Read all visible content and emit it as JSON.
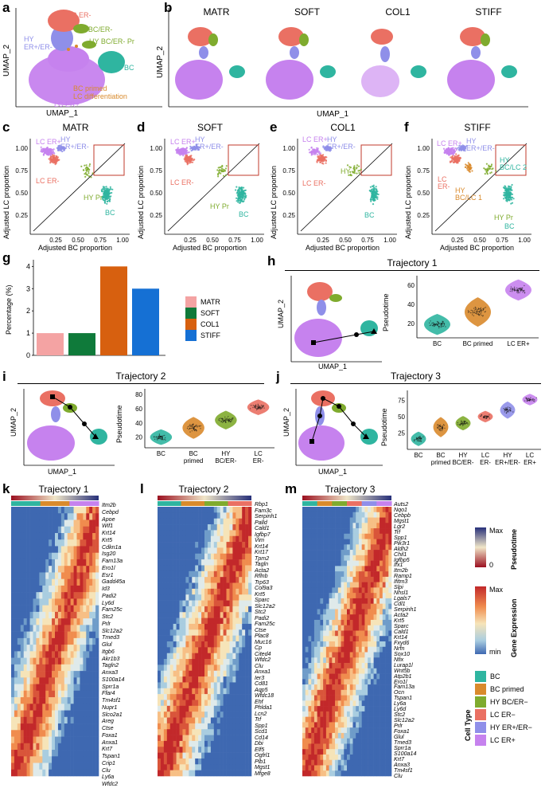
{
  "colors": {
    "bc": "#2fb5a0",
    "bc_primed": "#d98a2c",
    "hy_bcer": "#7fab2e",
    "lc_erneg": "#ea7063",
    "hy_erer": "#8f8fe9",
    "lc_erpos": "#c682ee",
    "matr": "#f4a3a3",
    "soft": "#0f7a3a",
    "col1": "#d7600f",
    "stiff": "#1570d4"
  },
  "panels": {
    "a": "a",
    "b": "b",
    "c": "c",
    "d": "d",
    "e": "e",
    "f": "f",
    "g": "g",
    "h": "h",
    "i": "i",
    "j": "j",
    "k": "k",
    "l": "l",
    "m": "m"
  },
  "panel_a": {
    "labels": [
      "LC ER-",
      "HY BC/ER-",
      "HY ER+/ER-",
      "HY BC/ER- Pr",
      "BC",
      "BC primed LC differentiation",
      "LC ER+"
    ],
    "xlabel": "UMAP_1",
    "ylabel": "UMAP_2"
  },
  "panel_b": {
    "conditions": [
      "MATR",
      "SOFT",
      "COL1",
      "STIFF"
    ],
    "xlabel": "UMAP_1",
    "ylabel": "UMAP_2"
  },
  "scatter_panels": {
    "titles": [
      "MATR",
      "SOFT",
      "COL1",
      "STIFF"
    ],
    "xlabel": "Adjusted BC proportion",
    "ylabel": "Adjusted LC proportion",
    "xticks": [
      "0.25",
      "0.50",
      "0.75",
      "1.00"
    ],
    "yticks": [
      "1.00",
      "0.75",
      "0.50",
      "0.25"
    ],
    "labels_c": [
      "LC ER+",
      "HY ER+/ER-",
      "LC ER-",
      "HY Pr",
      "BC"
    ],
    "labels_d": [
      "LC ER+",
      "HY ER+/ER-",
      "LC ER-",
      "HY Pr",
      "BC"
    ],
    "labels_e": [
      "LC ER+",
      "HY ER+/ER-",
      "LC ER-",
      "HY",
      "BC"
    ],
    "labels_f": [
      "LC ER+",
      "HY ER+/ER-",
      "HY BC/LC 2",
      "LC ER-",
      "HY BC/LC 1",
      "HY Pr",
      "BC"
    ]
  },
  "chart_data": [
    {
      "type": "bar",
      "title": "",
      "categories": [
        "MATR",
        "SOFT",
        "COL1",
        "STIFF"
      ],
      "values": [
        1,
        1,
        4,
        3
      ],
      "ylabel": "Percentage (%)",
      "xlabel": "",
      "ylim": [
        0,
        4.3
      ],
      "yticks": [
        "0",
        "1",
        "2",
        "3",
        "4"
      ],
      "legend": [
        "MATR",
        "SOFT",
        "COL1",
        "STIFF"
      ],
      "legend_position": "right"
    }
  ],
  "trajectories": {
    "t1": {
      "title": "Trajectory 1",
      "ylabel": "Pseudotime",
      "yticks": [
        "20",
        "40",
        "60"
      ],
      "groups": [
        "BC",
        "BC primed",
        "LC ER+"
      ],
      "umap_x": "UMAP_1",
      "umap_y": "UMAP_2"
    },
    "t2": {
      "title": "Trajectory 2",
      "ylabel": "Pseudotime",
      "yticks": [
        "20",
        "40",
        "60",
        "80"
      ],
      "groups": [
        "BC",
        "BC primed",
        "HY BC/ER-",
        "LC ER-"
      ],
      "umap_x": "UMAP_1",
      "umap_y": "UMAP_2"
    },
    "t3": {
      "title": "Trajectory 3",
      "ylabel": "Pseudotime",
      "yticks": [
        "25",
        "50",
        "75"
      ],
      "groups": [
        "BC",
        "BC primed",
        "HY BC/ER-",
        "LC ER-",
        "HY ER+/ER-",
        "LC ER+"
      ],
      "umap_x": "UMAP_1",
      "umap_y": "UMAP_2"
    }
  },
  "heatmaps": {
    "k": {
      "title": "Trajectory 1",
      "genes": [
        "Itm2b",
        "Cebpd",
        "Apoe",
        "Wif1",
        "Krt14",
        "Krt5",
        "Cdkn1a",
        "Isg20",
        "Fam13a",
        "Ero1l",
        "Esr1",
        "Gadd45a",
        "Id3",
        "Padi2",
        "Ly6d",
        "Fam25c",
        "Stc2",
        "Prlr",
        "Slc12a2",
        "Tmed3",
        "Glul",
        "Itgb6",
        "Akr1b3",
        "Tagln2",
        "Anxa3",
        "S100a14",
        "Sprr1a",
        "Ffar4",
        "Tm4sf1",
        "Nupr1",
        "Slco2a1",
        "Areg",
        "Ctse",
        "Foxa1",
        "Anxa1",
        "Krt7",
        "Tspan1",
        "Crip1",
        "Clu",
        "Ly6a",
        "Wfdc2"
      ]
    },
    "l": {
      "title": "Trajectory 2",
      "genes": [
        "Rbp1",
        "Fam3c",
        "Serpinh1",
        "Palld",
        "Cald1",
        "Igfbp7",
        "Vim",
        "Krt14",
        "Krt17",
        "Tpm2",
        "Tagln",
        "Acta2",
        "Rflnb",
        "Trp63",
        "Col9a3",
        "Krt5",
        "Sparc",
        "Slc12a2",
        "Stc2",
        "Padi2",
        "Fam25c",
        "Ctse",
        "Plac8",
        "Muc16",
        "Cp",
        "Cited4",
        "Wfdc2",
        "Clu",
        "Anxa1",
        "Ier3",
        "Cd81",
        "Aqp5",
        "Wfdc18",
        "Ehf",
        "Phlda1",
        "Lcn2",
        "Trf",
        "Spp1",
        "Scd1",
        "Cd14",
        "Dbi",
        "Elf5",
        "Ogfrl1",
        "Plb1",
        "Mgst1",
        "Mfge8"
      ]
    },
    "m": {
      "title": "Trajectory 3",
      "genes": [
        "Auts2",
        "Nqo1",
        "Cebpb",
        "Mgst1",
        "Lgr2",
        "Trf",
        "Spp1",
        "Pik3r1",
        "Aldh2",
        "Chil1",
        "Igfbp5",
        "Ifx1",
        "Itm2b",
        "Ramp1",
        "Ifitm3",
        "Slpi",
        "Nhsl1",
        "Lgals7",
        "Cdl1",
        "Serpinh1",
        "Acta2",
        "Krt5",
        "Sparc",
        "Cald1",
        "Krt14",
        "Fxyd6",
        "Nrfn",
        "Sox10",
        "Nfix",
        "Lurap1l",
        "Wnt5b",
        "Atp2b1",
        "Ero1l",
        "Fam13a",
        "Ocn",
        "Tspan1",
        "Ly6a",
        "Ly6d",
        "Stc2",
        "Slc12a2",
        "Prlr",
        "Foxa1",
        "Glul",
        "Tmed3",
        "Sprr1a",
        "S100a14",
        "Krt7",
        "Anxa3",
        "Tm4sf1",
        "Clu"
      ]
    }
  },
  "heatmap_legend": {
    "pseudotime_title": "Pseudotime",
    "pseudotime_max": "Max",
    "pseudotime_min": "0",
    "expression_title": "Gene Expression",
    "expression_max": "Max",
    "expression_min": "min",
    "celltype_title": "Cell Type",
    "celltypes": [
      "BC",
      "BC primed",
      "HY BC/ER−",
      "LC ER−",
      "HY ER+/ER−",
      "LC ER+"
    ]
  }
}
